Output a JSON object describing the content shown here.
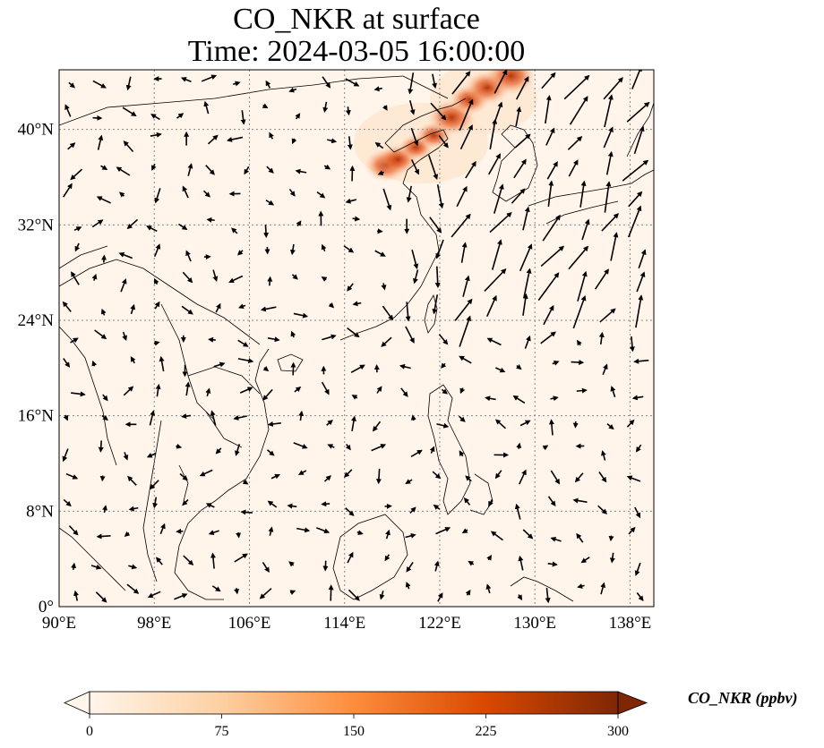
{
  "title": {
    "line1": "CO_NKR at surface",
    "line2": "Time: 2024-03-05 16:00:00"
  },
  "map": {
    "lon_range": [
      90,
      140
    ],
    "lat_range": [
      0,
      45
    ],
    "grid_style": "dotted",
    "x_ticks": [
      {
        "value": 90,
        "label": "90°E"
      },
      {
        "value": 98,
        "label": "98°E"
      },
      {
        "value": 106,
        "label": "106°E"
      },
      {
        "value": 114,
        "label": "114°E"
      },
      {
        "value": 122,
        "label": "122°E"
      },
      {
        "value": 130,
        "label": "130°E"
      },
      {
        "value": 138,
        "label": "138°E"
      }
    ],
    "y_ticks": [
      {
        "value": 0,
        "label": "0°"
      },
      {
        "value": 8,
        "label": "8°N"
      },
      {
        "value": 16,
        "label": "16°N"
      },
      {
        "value": 24,
        "label": "24°N"
      },
      {
        "value": 32,
        "label": "32°N"
      },
      {
        "value": 40,
        "label": "40°N"
      }
    ],
    "background_color": "#fff5eb",
    "coastline_color": "#000000",
    "arrow_color": "#000000",
    "concentration_hotspots": [
      {
        "lon": 117.5,
        "lat": 37.0,
        "value": 230
      },
      {
        "lon": 118.5,
        "lat": 37.5,
        "value": 200
      },
      {
        "lon": 120.0,
        "lat": 38.5,
        "value": 160
      },
      {
        "lon": 121.5,
        "lat": 39.5,
        "value": 170
      },
      {
        "lon": 123.0,
        "lat": 41.0,
        "value": 260
      },
      {
        "lon": 124.5,
        "lat": 42.5,
        "value": 200
      },
      {
        "lon": 126.0,
        "lat": 43.5,
        "value": 240
      },
      {
        "lon": 128.0,
        "lat": 44.5,
        "value": 280
      }
    ]
  },
  "colorbar": {
    "title": "CO_NKR (ppbv)",
    "min": 0,
    "max": 300,
    "ticks": [
      {
        "value": 0,
        "label": "0"
      },
      {
        "value": 75,
        "label": "75"
      },
      {
        "value": 150,
        "label": "150"
      },
      {
        "value": 225,
        "label": "225"
      },
      {
        "value": 300,
        "label": "300"
      }
    ],
    "colors": [
      "#fff5eb",
      "#fdd0a2",
      "#fd8d3c",
      "#d94801",
      "#7f2704"
    ]
  }
}
